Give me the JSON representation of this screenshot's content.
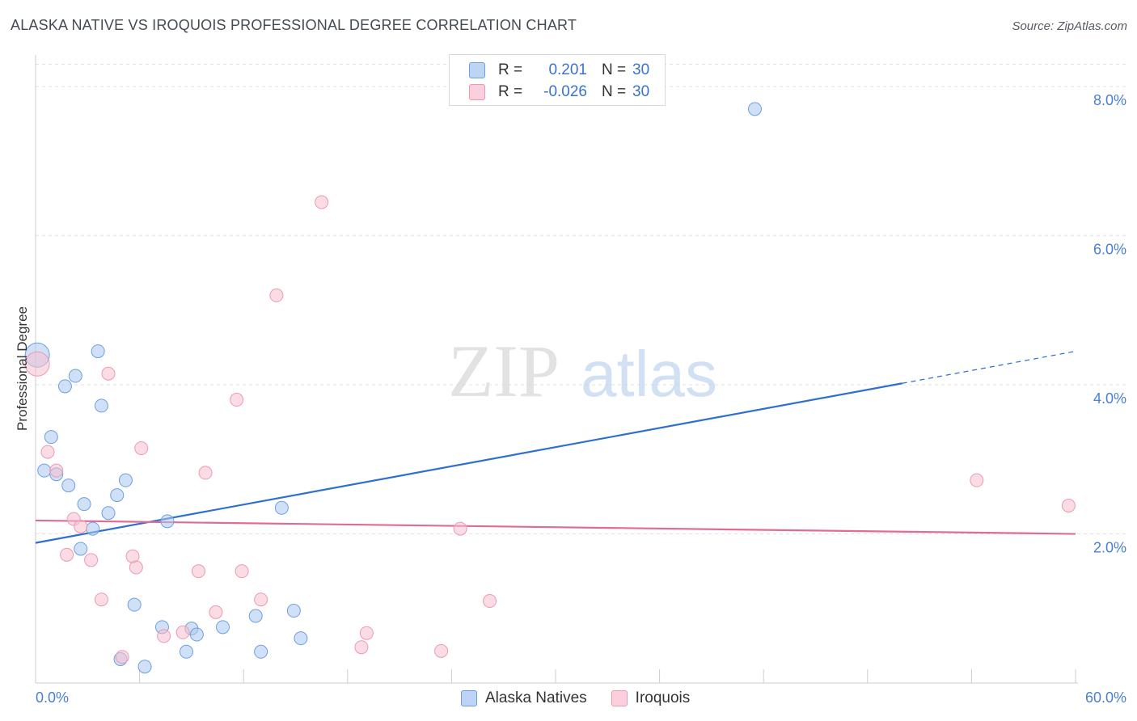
{
  "header": {
    "title": "ALASKA NATIVE VS IROQUOIS PROFESSIONAL DEGREE CORRELATION CHART",
    "source": "Source: ZipAtlas.com"
  },
  "watermark": {
    "zip": "ZIP",
    "atlas": "atlas"
  },
  "legend": {
    "rows": [
      {
        "r_label": "R =",
        "r_value": "0.201",
        "n_label": "N =",
        "n_value": "30"
      },
      {
        "r_label": "R =",
        "r_value": "-0.026",
        "n_label": "N =",
        "n_value": "30"
      }
    ]
  },
  "chart_data": {
    "type": "scatter",
    "title": "ALASKA NATIVE VS IROQUOIS PROFESSIONAL DEGREE CORRELATION CHART",
    "xlabel": "",
    "ylabel": "Professional Degree",
    "xlim": [
      0,
      60
    ],
    "ylim": [
      0,
      8.3
    ],
    "x_tick_labels": [
      "0.0%",
      "60.0%"
    ],
    "y_ticks": [
      2,
      4,
      6,
      8
    ],
    "y_tick_labels": [
      "2.0%",
      "4.0%",
      "6.0%",
      "8.0%"
    ],
    "grid": "horizontal dashed",
    "legend_position": "top-center and bottom-center",
    "series": [
      {
        "name": "Alaska Natives",
        "color": "#a9c8f0",
        "edge_color": "#6e9fe0",
        "line_color": "#2f6fcf",
        "trend": {
          "x0": 0,
          "y0": 1.88,
          "x1": 50,
          "y1": 4.02,
          "dashed_to_x": 60,
          "dashed_to_y": 4.45
        },
        "points": [
          [
            0.1,
            4.4
          ],
          [
            0.5,
            2.85
          ],
          [
            0.9,
            3.3
          ],
          [
            1.2,
            2.8
          ],
          [
            1.7,
            3.98
          ],
          [
            1.9,
            2.65
          ],
          [
            2.3,
            4.12
          ],
          [
            2.6,
            1.8
          ],
          [
            2.8,
            2.4
          ],
          [
            3.3,
            2.07
          ],
          [
            3.6,
            4.45
          ],
          [
            3.8,
            3.72
          ],
          [
            4.2,
            2.28
          ],
          [
            4.7,
            2.52
          ],
          [
            4.9,
            0.32
          ],
          [
            5.2,
            2.72
          ],
          [
            5.7,
            1.05
          ],
          [
            6.3,
            0.22
          ],
          [
            7.3,
            0.75
          ],
          [
            7.6,
            2.17
          ],
          [
            8.7,
            0.42
          ],
          [
            9.0,
            0.73
          ],
          [
            9.3,
            0.65
          ],
          [
            10.8,
            0.75
          ],
          [
            12.7,
            0.9
          ],
          [
            13.0,
            0.42
          ],
          [
            14.2,
            2.35
          ],
          [
            14.9,
            0.97
          ],
          [
            15.3,
            0.6
          ],
          [
            41.5,
            7.7
          ]
        ]
      },
      {
        "name": "Iroquois",
        "color": "#f6bfd0",
        "edge_color": "#ef98b2",
        "line_color": "#e06b96",
        "trend": {
          "x0": 0,
          "y0": 2.18,
          "x1": 60,
          "y1": 2.0
        },
        "points": [
          [
            0.1,
            4.28
          ],
          [
            0.7,
            3.1
          ],
          [
            1.2,
            2.85
          ],
          [
            1.8,
            1.72
          ],
          [
            2.2,
            2.2
          ],
          [
            2.6,
            2.1
          ],
          [
            3.2,
            1.65
          ],
          [
            3.8,
            1.12
          ],
          [
            4.2,
            4.15
          ],
          [
            5.0,
            0.35
          ],
          [
            5.6,
            1.7
          ],
          [
            5.8,
            1.55
          ],
          [
            6.1,
            3.15
          ],
          [
            7.4,
            0.63
          ],
          [
            8.5,
            0.68
          ],
          [
            9.4,
            1.5
          ],
          [
            9.8,
            2.82
          ],
          [
            10.4,
            0.95
          ],
          [
            11.6,
            3.8
          ],
          [
            11.9,
            1.5
          ],
          [
            13.0,
            1.12
          ],
          [
            13.9,
            5.2
          ],
          [
            16.5,
            6.45
          ],
          [
            18.8,
            0.48
          ],
          [
            19.1,
            0.67
          ],
          [
            23.4,
            0.43
          ],
          [
            24.5,
            2.07
          ],
          [
            26.2,
            1.1
          ],
          [
            54.3,
            2.72
          ],
          [
            59.6,
            2.38
          ]
        ]
      }
    ]
  }
}
